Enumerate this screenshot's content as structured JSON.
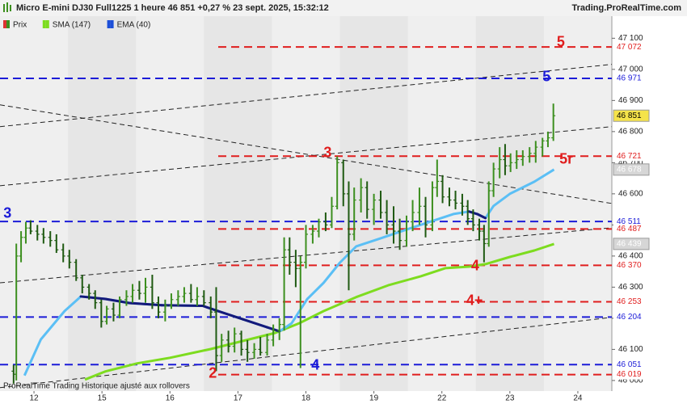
{
  "chart_data": {
    "type": "ohlc",
    "title": "Micro E-mini DJ30 Full1225 1 heure 46 851 +0,27 % 23 sept. 2025, 15:32:12",
    "source": "Trading.ProRealTime.com",
    "footer": "ProRealTime Trading  Historique ajusté aux rollovers",
    "price_name": "Prix",
    "up_color": "#3c8f1f",
    "down_color": "#1f5a12",
    "last_label": "46 851",
    "xlim": [
      -0.5,
      8.5
    ],
    "ylim": [
      45966,
      47171
    ],
    "xticks": [
      {
        "value": 0,
        "label": "12"
      },
      {
        "value": 1,
        "label": "15"
      },
      {
        "value": 2,
        "label": "16"
      },
      {
        "value": 3,
        "label": "17"
      },
      {
        "value": 4,
        "label": "18"
      },
      {
        "value": 5,
        "label": "19"
      },
      {
        "value": 6,
        "label": "22"
      },
      {
        "value": 7,
        "label": "23"
      },
      {
        "value": 8,
        "label": "24"
      }
    ],
    "yticks": [
      {
        "value": 46000,
        "label": "46 000"
      },
      {
        "value": 46100,
        "label": "46 100"
      },
      {
        "value": 46200,
        "label": "46 200"
      },
      {
        "value": 46300,
        "label": "46 300"
      },
      {
        "value": 46400,
        "label": "46 400"
      },
      {
        "value": 46500,
        "label": "46 500"
      },
      {
        "value": 46600,
        "label": "46 600"
      },
      {
        "value": 46700,
        "label": "46 700"
      },
      {
        "value": 46800,
        "label": "46 800"
      },
      {
        "value": 46900,
        "label": "46 900"
      },
      {
        "value": 47000,
        "label": "47 000"
      },
      {
        "value": 47100,
        "label": "47 100"
      }
    ],
    "x": [
      -0.3,
      -0.26,
      -0.19,
      -0.12,
      -0.05,
      0.05,
      0.14,
      0.24,
      0.33,
      0.43,
      0.52,
      0.62,
      0.71,
      0.81,
      0.9,
      0.99,
      1.07,
      1.17,
      1.26,
      1.36,
      1.45,
      1.55,
      1.64,
      1.74,
      1.83,
      1.93,
      2.02,
      2.12,
      2.21,
      2.31,
      2.4,
      2.5,
      2.6,
      2.68,
      2.76,
      2.86,
      2.95,
      3.05,
      3.14,
      3.24,
      3.33,
      3.43,
      3.52,
      3.61,
      3.68,
      3.76,
      3.85,
      3.92,
      4.0,
      4.1,
      4.19,
      4.29,
      4.38,
      4.46,
      4.55,
      4.63,
      4.71,
      4.81,
      4.9,
      5.0,
      5.1,
      5.19,
      5.29,
      5.38,
      5.48,
      5.57,
      5.67,
      5.76,
      5.86,
      5.93,
      6.01,
      6.11,
      6.2,
      6.3,
      6.38,
      6.46,
      6.55,
      6.62,
      6.69,
      6.76,
      6.85,
      6.93,
      7.01,
      7.1,
      7.19,
      7.29,
      7.38,
      7.48,
      7.56,
      7.64
    ],
    "open": [
      46030,
      46020,
      46400,
      46460,
      46490,
      46480,
      46470,
      46460,
      46450,
      46420,
      46400,
      46380,
      46330,
      46300,
      46280,
      46250,
      46190,
      46230,
      46210,
      46260,
      46270,
      46290,
      46280,
      46300,
      46250,
      46220,
      46240,
      46260,
      46270,
      46280,
      46260,
      46270,
      46250,
      46220,
      46080,
      46130,
      46110,
      46150,
      46100,
      46090,
      46100,
      46090,
      46130,
      46160,
      46180,
      46420,
      46380,
      46360,
      46380,
      46470,
      46480,
      46510,
      46500,
      46560,
      46700,
      46600,
      46470,
      46580,
      46620,
      46550,
      46580,
      46540,
      46500,
      46480,
      46450,
      46510,
      46540,
      46560,
      46500,
      46620,
      46640,
      46590,
      46580,
      46570,
      46560,
      46520,
      46500,
      46480,
      46440,
      46610,
      46680,
      46710,
      46690,
      46700,
      46710,
      46720,
      46730,
      46750,
      46770,
      46780
    ],
    "high": [
      46050,
      46440,
      46480,
      46510,
      46515,
      46500,
      46490,
      46480,
      46470,
      46440,
      46420,
      46390,
      46340,
      46310,
      46290,
      46260,
      46240,
      46250,
      46270,
      46290,
      46310,
      46320,
      46330,
      46340,
      46270,
      46260,
      46280,
      46290,
      46300,
      46310,
      46300,
      46290,
      46270,
      46300,
      46150,
      46160,
      46170,
      46160,
      46130,
      46120,
      46140,
      46150,
      46180,
      46200,
      46460,
      46460,
      46420,
      46400,
      46500,
      46500,
      46520,
      46540,
      46590,
      46720,
      46710,
      46640,
      46620,
      46650,
      46640,
      46600,
      46610,
      46580,
      46560,
      46520,
      46530,
      46580,
      46620,
      46590,
      46640,
      46710,
      46660,
      46620,
      46610,
      46600,
      46580,
      46550,
      46520,
      46500,
      46640,
      46700,
      46750,
      46760,
      46730,
      46740,
      46740,
      46750,
      46770,
      46780,
      46800,
      46890
    ],
    "low": [
      45990,
      46000,
      46380,
      46440,
      46470,
      46450,
      46440,
      46430,
      46410,
      46380,
      46360,
      46320,
      46280,
      46260,
      46230,
      46170,
      46180,
      46190,
      46200,
      46240,
      46250,
      46260,
      46250,
      46230,
      46200,
      46190,
      46230,
      46240,
      46250,
      46250,
      46240,
      46240,
      46200,
      46030,
      46060,
      46090,
      46090,
      46080,
      46060,
      46070,
      46080,
      46080,
      46110,
      46130,
      46160,
      46340,
      46300,
      46040,
      46360,
      46440,
      46460,
      46480,
      46490,
      46550,
      46560,
      46290,
      46450,
      46540,
      46520,
      46500,
      46520,
      46470,
      46440,
      46420,
      46430,
      46480,
      46500,
      46460,
      46480,
      46590,
      46570,
      46560,
      46550,
      46530,
      46500,
      46480,
      46450,
      46380,
      46430,
      46590,
      46650,
      46660,
      46670,
      46680,
      46690,
      46700,
      46700,
      46720,
      46750,
      46770
    ],
    "close": [
      46020,
      46400,
      46460,
      46490,
      46480,
      46470,
      46460,
      46450,
      46420,
      46400,
      46380,
      46330,
      46300,
      46280,
      46250,
      46190,
      46230,
      46210,
      46260,
      46270,
      46290,
      46280,
      46300,
      46250,
      46220,
      46240,
      46260,
      46270,
      46280,
      46260,
      46270,
      46250,
      46220,
      46080,
      46130,
      46110,
      46150,
      46100,
      46090,
      46100,
      46090,
      46130,
      46160,
      46180,
      46420,
      46380,
      46360,
      46380,
      46470,
      46480,
      46510,
      46500,
      46560,
      46700,
      46600,
      46470,
      46580,
      46620,
      46550,
      46580,
      46540,
      46500,
      46480,
      46450,
      46510,
      46540,
      46560,
      46500,
      46620,
      46640,
      46590,
      46580,
      46570,
      46560,
      46520,
      46500,
      46480,
      46440,
      46610,
      46680,
      46710,
      46690,
      46700,
      46710,
      46720,
      46730,
      46750,
      46770,
      46780,
      46851
    ],
    "overlays": [
      {
        "name": "SMA (147)",
        "color": "#7ddc1f",
        "last_label": "46 439",
        "x": [
          0.75,
          1.05,
          1.52,
          2.0,
          2.6,
          3.07,
          3.55,
          3.9,
          4.26,
          4.74,
          5.21,
          5.69,
          6.05,
          6.4,
          6.64,
          7.0,
          7.36,
          7.65
        ],
        "values": [
          46003,
          46029,
          46055,
          46073,
          46101,
          46127,
          46153,
          46184,
          46223,
          46268,
          46306,
          46335,
          46361,
          46366,
          46374,
          46397,
          46418,
          46439
        ]
      },
      {
        "name": "EMA (40)",
        "color": "#5bbff5",
        "color_down": "#14197a",
        "last_label": "46 678",
        "x": [
          -0.14,
          0.1,
          0.45,
          0.69,
          1.05,
          1.4,
          1.88,
          2.48,
          2.71,
          3.07,
          3.43,
          3.61,
          3.79,
          4.02,
          4.26,
          4.5,
          4.74,
          5.1,
          5.45,
          5.81,
          6.17,
          6.4,
          6.52,
          6.64,
          6.76,
          7.0,
          7.36,
          7.65
        ],
        "values": [
          46016,
          46132,
          46223,
          46270,
          46262,
          46249,
          46242,
          46240,
          46223,
          46197,
          46171,
          46158,
          46184,
          46262,
          46314,
          46379,
          46431,
          46457,
          46483,
          46509,
          46535,
          46543,
          46535,
          46522,
          46561,
          46600,
          46639,
          46678
        ]
      }
    ],
    "levels": [
      {
        "value": 47072,
        "label": "47 072",
        "color": "#e01e1e",
        "start": 2.71
      },
      {
        "value": 46971,
        "label": "46 971",
        "color": "#1c1cd8",
        "start": -0.5
      },
      {
        "value": 46721,
        "label": "46 721",
        "color": "#e01e1e",
        "start": 2.71
      },
      {
        "value": 46511,
        "label": "46 511",
        "color": "#1c1cd8",
        "start": -0.5
      },
      {
        "value": 46487,
        "label": "46 487",
        "color": "#e01e1e",
        "start": 2.71
      },
      {
        "value": 46370,
        "label": "46 370",
        "color": "#e01e1e",
        "start": 2.71
      },
      {
        "value": 46253,
        "label": "46 253",
        "color": "#e01e1e",
        "start": 2.71
      },
      {
        "value": 46204,
        "label": "46 204",
        "color": "#1c1cd8",
        "start": -0.5
      },
      {
        "value": 46051,
        "label": "46 051",
        "color": "#1c1cd8",
        "start": -0.5
      },
      {
        "value": 46019,
        "label": "46 019",
        "color": "#e01e1e",
        "start": 2.71
      }
    ],
    "trendlines": [
      {
        "x": [
          -0.5,
          8.5
        ],
        "y": [
          46816,
          47016
        ]
      },
      {
        "x": [
          -0.5,
          8.5
        ],
        "y": [
          46886,
          46569
        ]
      },
      {
        "x": [
          -0.5,
          8.5
        ],
        "y": [
          46626,
          46816
        ]
      },
      {
        "x": [
          -0.5,
          8.5
        ],
        "y": [
          46314,
          46491
        ]
      },
      {
        "x": [
          -0.5,
          8.5
        ],
        "y": [
          45977,
          46203
        ]
      }
    ],
    "annotations": [
      {
        "text": "5",
        "color": "#e01e1e",
        "x": 7.75,
        "y": 47086
      },
      {
        "text": "5",
        "color": "#1c1cd8",
        "x": 7.54,
        "y": 46974
      },
      {
        "text": "3",
        "color": "#e01e1e",
        "x": 4.32,
        "y": 46730
      },
      {
        "text": "5r",
        "color": "#e01e1e",
        "x": 7.83,
        "y": 46709
      },
      {
        "text": "3",
        "color": "#1c1cd8",
        "x": -0.39,
        "y": 46535
      },
      {
        "text": "4",
        "color": "#e01e1e",
        "x": 6.49,
        "y": 46366
      },
      {
        "text": "4+",
        "color": "#e01e1e",
        "x": 6.48,
        "y": 46255
      },
      {
        "text": "2",
        "color": "#e01e1e",
        "x": 2.63,
        "y": 46021
      },
      {
        "text": "4",
        "color": "#1c1cd8",
        "x": 4.14,
        "y": 46047
      }
    ]
  }
}
